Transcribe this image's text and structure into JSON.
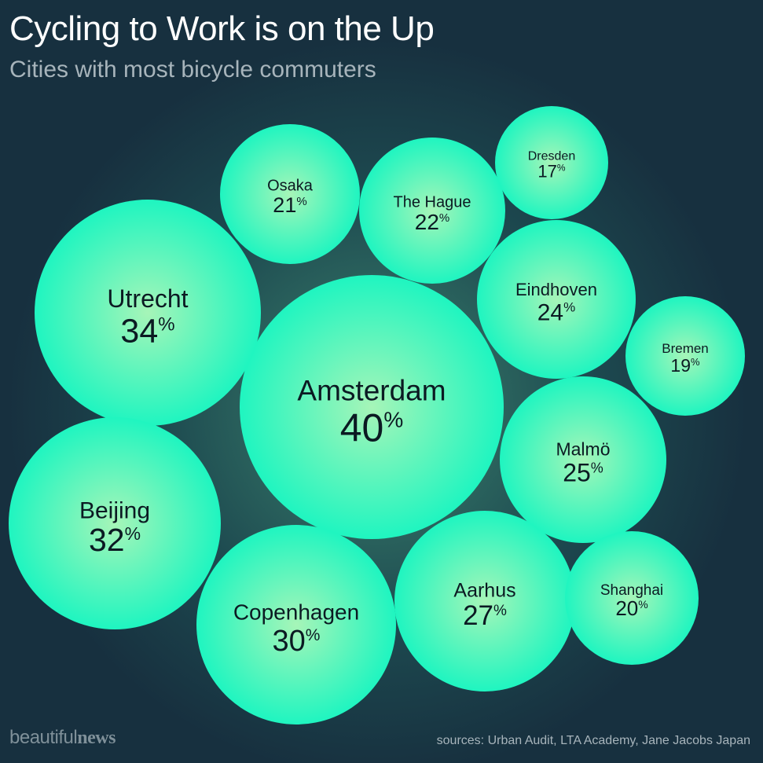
{
  "header": {
    "title": "Cycling to Work is on the Up",
    "subtitle": "Cities with most bicycle commuters"
  },
  "footer": {
    "brand_light": "beautiful",
    "brand_bold": "news",
    "sources": "sources: Urban Audit, LTA Academy, Jane Jacobs Japan"
  },
  "colors": {
    "background": "#17303f",
    "bubble_center": "#a6f5b8",
    "bubble_edge": "#1ff5c0",
    "label": "#0b1a22"
  },
  "chart_data": {
    "type": "bubble",
    "unit": "%",
    "points": [
      {
        "city": "Amsterdam",
        "value": 40
      },
      {
        "city": "Utrecht",
        "value": 34
      },
      {
        "city": "Beijing",
        "value": 32
      },
      {
        "city": "Copenhagen",
        "value": 30
      },
      {
        "city": "Aarhus",
        "value": 27
      },
      {
        "city": "Malmö",
        "value": 25
      },
      {
        "city": "Eindhoven",
        "value": 24
      },
      {
        "city": "The Hague",
        "value": 22
      },
      {
        "city": "Osaka",
        "value": 21
      },
      {
        "city": "Shanghai",
        "value": 20
      },
      {
        "city": "Bremen",
        "value": 19
      },
      {
        "city": "Dresden",
        "value": 17
      }
    ]
  }
}
